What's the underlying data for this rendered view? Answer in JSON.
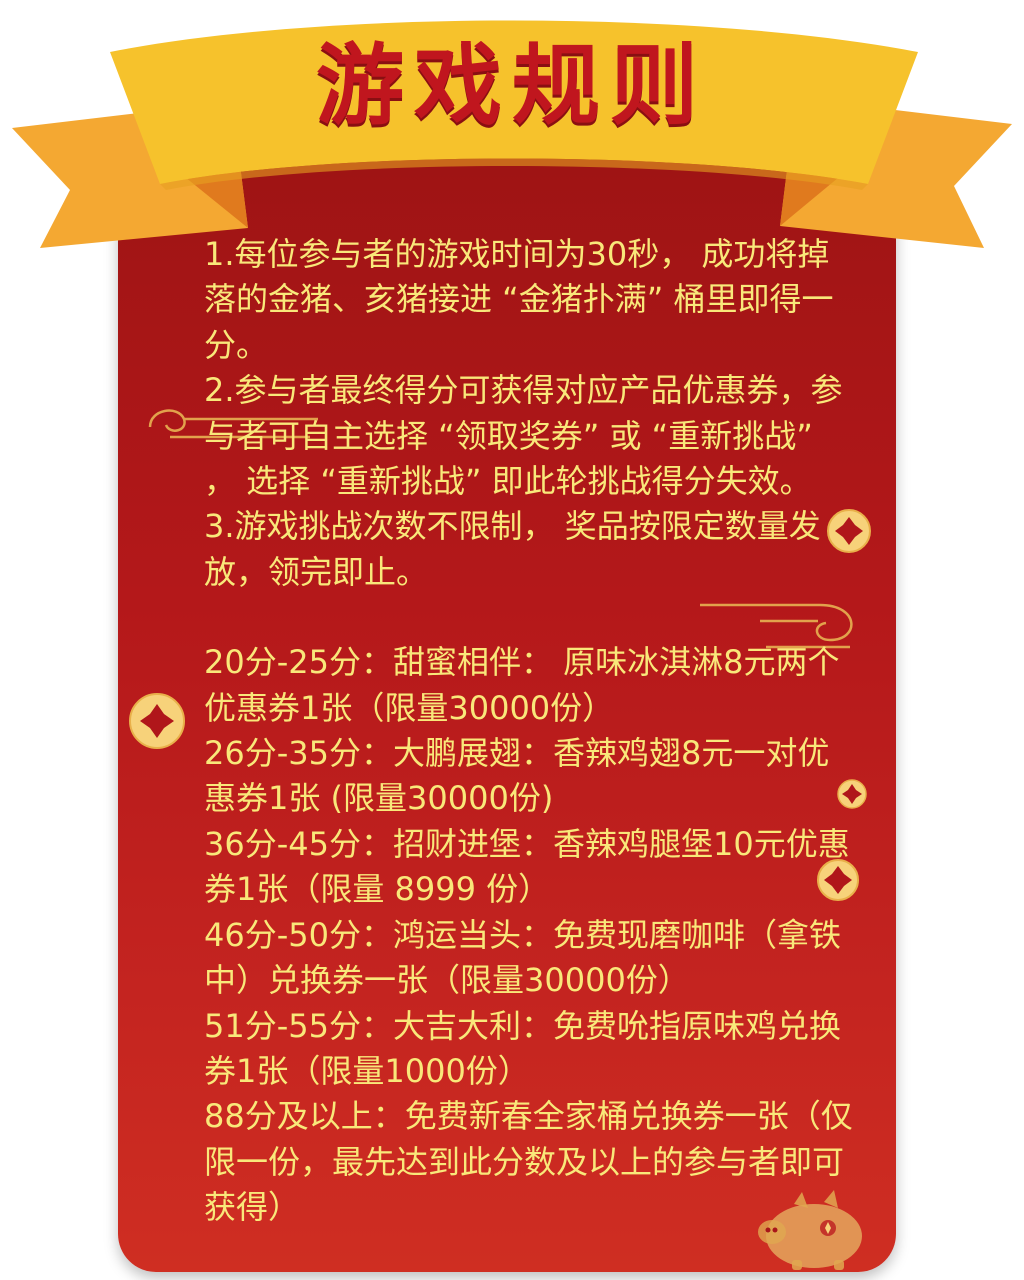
{
  "title": "游戏规则",
  "rules": [
    "1.每位参与者的游戏时间为30秒， 成功将掉落的金猪、亥猪接进 “金猪扑满” 桶里即得一分。",
    "2.参与者最终得分可获得对应产品优惠券，参与者可自主选择 “领取奖券” 或 “重新挑战” ， 选择 “重新挑战” 即此轮挑战得分失效。",
    "3.游戏挑战次数不限制， 奖品按限定数量发放，领完即止。"
  ],
  "prizes": [
    "20分-25分：甜蜜相伴： 原味冰淇淋8元两个优惠券1张（限量30000份）",
    "26分-35分：大鹏展翅：香辣鸡翅8元一对优惠券1张 (限量30000份)",
    "36分-45分：招财进堡：香辣鸡腿堡10元优惠券1张（限量 8999 份）",
    "46分-50分：鸿运当头：免费现磨咖啡（拿铁中）兑换券一张（限量30000份）",
    "51分-55分：大吉大利：免费吮指原味鸡兑换券1张（限量1000份）",
    "88分及以上：免费新春全家桶兑换券一张（仅限一份，最先达到此分数及以上的参与者即可获得）"
  ],
  "colors": {
    "panel": "#b4181a",
    "ribbon": "#f6c22c",
    "ribbon_dark": "#e88f24",
    "title": "#c0161e",
    "text": "#f9e87a"
  }
}
